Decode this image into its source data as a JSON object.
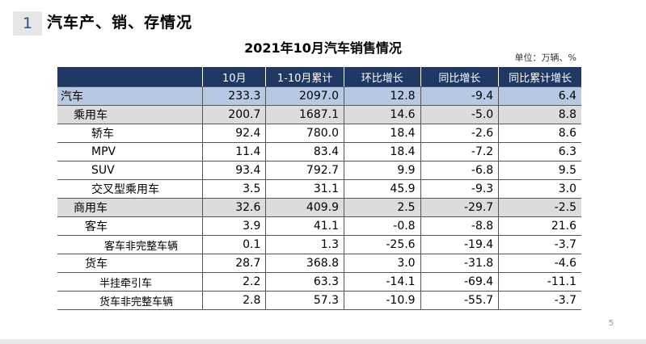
{
  "header": {
    "slide_number": "1",
    "section_title": "汽车产、销、存情况"
  },
  "table": {
    "title": "2021年10月汽车销售情况",
    "unit": "单位：万辆、%",
    "columns": [
      "",
      "10月",
      "1-10月累计",
      "环比增长",
      "同比增长",
      "同比累计增长"
    ],
    "rows": [
      {
        "name": "汽车",
        "level": "lvl0",
        "values": [
          "233.3",
          "2097.0",
          "12.8",
          "-9.4",
          "6.4"
        ]
      },
      {
        "name": "乘用车",
        "level": "lvl1",
        "values": [
          "200.7",
          "1687.1",
          "14.6",
          "-5.0",
          "8.8"
        ]
      },
      {
        "name": "轿车",
        "level": "lvl2",
        "values": [
          "92.4",
          "780.0",
          "18.4",
          "-2.6",
          "8.6"
        ]
      },
      {
        "name": "MPV",
        "level": "lvl2",
        "values": [
          "11.4",
          "83.4",
          "18.4",
          "-7.2",
          "6.3"
        ]
      },
      {
        "name": "SUV",
        "level": "lvl2",
        "values": [
          "93.4",
          "792.7",
          "9.9",
          "-6.8",
          "9.5"
        ]
      },
      {
        "name": "交叉型乘用车",
        "level": "lvl2",
        "values": [
          "3.5",
          "31.1",
          "45.9",
          "-9.3",
          "3.0"
        ]
      },
      {
        "name": "商用车",
        "level": "lvl1",
        "values": [
          "32.6",
          "409.9",
          "2.5",
          "-29.7",
          "-2.5"
        ]
      },
      {
        "name": "客车",
        "level": "lvl2b",
        "values": [
          "3.9",
          "41.1",
          "-0.8",
          "-8.8",
          "21.6"
        ]
      },
      {
        "name": "客车非完整车辆",
        "level": "lvl3",
        "values": [
          "0.1",
          "1.3",
          "-25.6",
          "-19.4",
          "-3.7"
        ]
      },
      {
        "name": "货车",
        "level": "lvl2b",
        "values": [
          "28.7",
          "368.8",
          "3.0",
          "-31.8",
          "-4.6"
        ]
      },
      {
        "name": "半挂牵引车",
        "level": "lvl3b",
        "values": [
          "2.2",
          "63.3",
          "-14.1",
          "-69.4",
          "-11.1"
        ]
      },
      {
        "name": "货车非完整车辆",
        "level": "lvl3b",
        "values": [
          "2.8",
          "57.3",
          "-10.9",
          "-55.7",
          "-3.7"
        ]
      }
    ]
  },
  "footer": {
    "page_number": "5"
  }
}
